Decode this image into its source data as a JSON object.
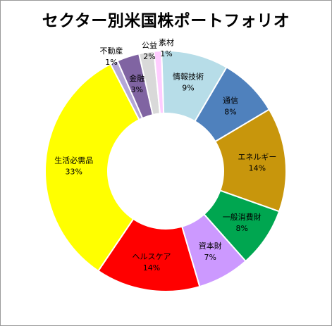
{
  "chart_data": {
    "type": "donut",
    "title": "セクター別米国株ポートフォリオ",
    "slices": [
      {
        "name": "情報技術",
        "value": 9,
        "label": "9%",
        "color": "#b7dde8"
      },
      {
        "name": "通信",
        "value": 8,
        "label": "8%",
        "color": "#4f81bd"
      },
      {
        "name": "エネルギー",
        "value": 14,
        "label": "14%",
        "color": "#c8960c"
      },
      {
        "name": "一般消費財",
        "value": 8,
        "label": "8%",
        "color": "#00a650"
      },
      {
        "name": "資本財",
        "value": 7,
        "label": "7%",
        "color": "#cc99ff"
      },
      {
        "name": "ヘルスケア",
        "value": 14,
        "label": "14%",
        "color": "#ff0000"
      },
      {
        "name": "生活必需品",
        "value": 33,
        "label": "33%",
        "color": "#ffff00"
      },
      {
        "name": "不動産",
        "value": 1,
        "label": "1%",
        "color": "#b4a7d6"
      },
      {
        "name": "金融",
        "value": 3,
        "label": "3%",
        "color": "#8064a2"
      },
      {
        "name": "公益",
        "value": 2,
        "label": "2%",
        "color": "#d9d9d9"
      },
      {
        "name": "素材",
        "value": 1,
        "label": "1%",
        "color": "#ffccff"
      }
    ]
  }
}
